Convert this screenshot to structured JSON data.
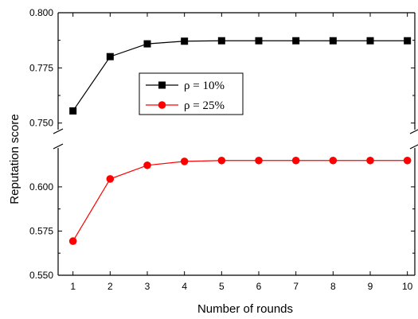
{
  "chart_data": {
    "type": "line",
    "title": "",
    "xlabel": "Number of rounds",
    "ylabel": "Reputation score",
    "x": [
      1,
      2,
      3,
      4,
      5,
      6,
      7,
      8,
      9,
      10
    ],
    "xticks": [
      "1",
      "2",
      "3",
      "4",
      "5",
      "6",
      "7",
      "8",
      "9",
      "10"
    ],
    "xlim": [
      0.6,
      10.2
    ],
    "axis_break": true,
    "upper_segment": {
      "ylim": [
        0.747,
        0.8
      ],
      "yticks": [
        "0.750",
        "0.775",
        "0.800"
      ]
    },
    "lower_segment": {
      "ylim": [
        0.55,
        0.622
      ],
      "yticks": [
        "0.550",
        "0.575",
        "0.600"
      ]
    },
    "grid": false,
    "legend_position": "upper-center",
    "series": [
      {
        "name": "ρ = 10%",
        "segment": "upper",
        "color": "#000000",
        "marker": "square",
        "values": [
          0.7555,
          0.7801,
          0.7859,
          0.7871,
          0.7873,
          0.7873,
          0.7873,
          0.7873,
          0.7873,
          0.7873
        ]
      },
      {
        "name": "ρ = 25%",
        "segment": "lower",
        "color": "#ff0000",
        "marker": "circle",
        "values": [
          0.5693,
          0.6045,
          0.6122,
          0.6144,
          0.6149,
          0.6149,
          0.6149,
          0.6149,
          0.6149,
          0.6149
        ]
      }
    ]
  }
}
